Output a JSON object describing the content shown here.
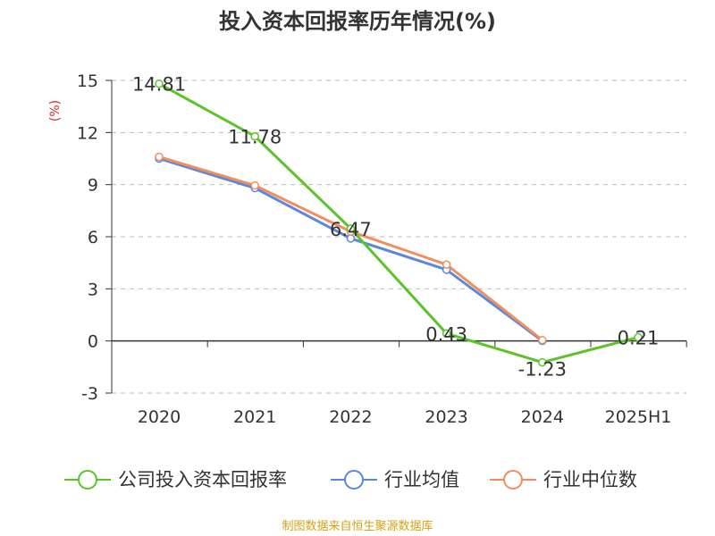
{
  "chart_data": {
    "type": "line",
    "title": "投入资本回报率历年情况(%)",
    "ylabel": "(%)",
    "categories": [
      "2020",
      "2021",
      "2022",
      "2023",
      "2024",
      "2025H1"
    ],
    "ylim": [
      -3,
      15
    ],
    "yticks": [
      "15",
      "12",
      "9",
      "6",
      "3",
      "0",
      "-3"
    ],
    "ytick_values": [
      15,
      12,
      9,
      6,
      3,
      0,
      -3
    ],
    "grid": true,
    "legend_position": "bottom",
    "series": [
      {
        "name": "公司投入资本回报率",
        "color": "#5ac429",
        "values": [
          14.81,
          11.78,
          6.47,
          0.43,
          -1.23,
          0.21
        ],
        "labels": [
          "14.81",
          "11.78",
          "6.47",
          "0.43",
          "-1.23",
          "0.21"
        ]
      },
      {
        "name": "行业均值",
        "color": "#5b87dd",
        "values": [
          10.5,
          8.8,
          5.9,
          4.1,
          0.0,
          null
        ]
      },
      {
        "name": "行业中位数",
        "color": "#f28e5e",
        "values": [
          10.6,
          8.95,
          6.3,
          4.4,
          0.05,
          null
        ]
      }
    ]
  },
  "source_text": "制图数据来自恒生聚源数据库",
  "colors": {
    "title": "#333333",
    "ylabel": "#d62728",
    "source": "#d4a017",
    "axis": "#333333",
    "grid": "#bbbbbb"
  }
}
